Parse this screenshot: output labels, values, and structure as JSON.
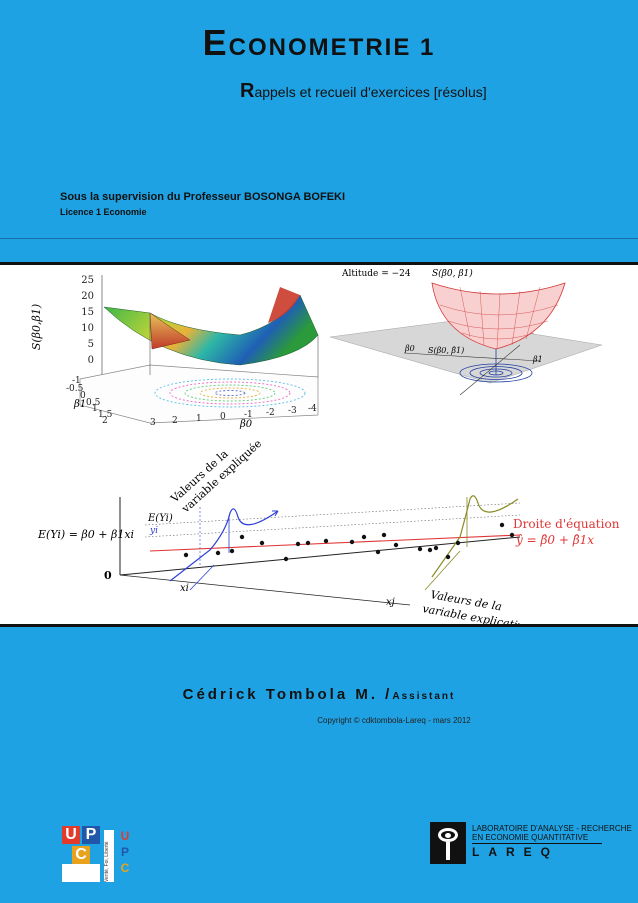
{
  "title": {
    "initial": "E",
    "rest": "CONOMETRIE 1"
  },
  "subtitle": {
    "initial": "R",
    "rest": "appels et recueil d'exercices [résolus]"
  },
  "supervision": "Sous la supervision du Professeur BOSONGA BOFEKI",
  "licence": "Licence 1  Economie",
  "figure": {
    "top_left": {
      "z_axis_label": "S(β0,β1)",
      "z_ticks": [
        "25",
        "20",
        "15",
        "10",
        "5",
        "0"
      ],
      "beta1_label": "β1",
      "beta1_ticks": [
        "-1",
        "-0.5",
        "0",
        "0.5",
        "1",
        "1.5",
        "2"
      ],
      "beta0_label": "β0",
      "beta0_ticks": [
        "3",
        "2",
        "1",
        "0",
        "-1",
        "-2",
        "-3",
        "-4"
      ]
    },
    "top_right": {
      "altitude": "Altitude = −24",
      "surface_label": "S(β0, β1)",
      "plane_label": "S(β0, β̂1)",
      "beta0_label": "β0",
      "beta1_label": "β1"
    },
    "bottom": {
      "y_axis_label_line1": "Valeurs de la",
      "y_axis_label_line2": "variable expliquée",
      "x_axis_label_line1": "Valeurs de la",
      "x_axis_label_line2": "variable explicative",
      "origin": "0",
      "expectation_label": "E(Yi) = β0 + β1xi",
      "expectation_short": "E(Yi)",
      "yi_label": "yi",
      "xi_label": "xi",
      "xj_label": "xj",
      "line_label": "Droite d'équation",
      "line_equation": "ŷ = β̂0 + β̂1x"
    }
  },
  "author": {
    "name": "Cédrick Tombola M. /",
    "role": "Assistant"
  },
  "copyright": "Copyright © cdktombola-Lareq - mars 2012",
  "logos": {
    "upc_letters": [
      "U",
      "P",
      "C"
    ],
    "upc_motto": "Verité, Foi, Liberté",
    "lareq_line1": "LABORATOIRE D'ANALYSE - RECHERCHE",
    "lareq_line2": "EN ECONOMIE QUANTITATIVE",
    "lareq_name": "LAREQ"
  },
  "colors": {
    "background": "#1fa2e3",
    "upc_u": "#e23a2b",
    "upc_p": "#2057a8",
    "upc_c": "#e9a21c",
    "regression_line": "#e03535"
  }
}
